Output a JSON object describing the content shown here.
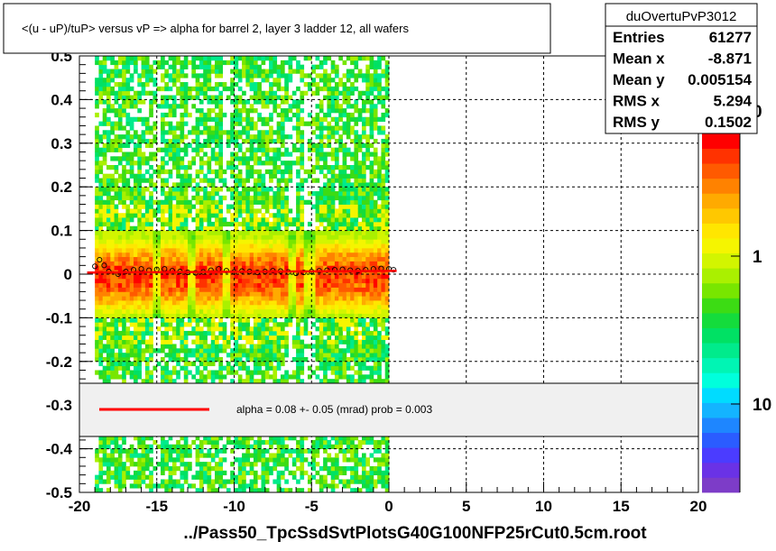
{
  "title": "<(u - uP)/tuP>  versus   vP =>  alpha for barrel 2, layer 3 ladder 12, all wafers",
  "footer": "../Pass50_TpcSsdSvtPlotsG40G100NFP25rCut0.5cm.root",
  "stats": {
    "name": "duOvertuPvP3012",
    "rows": [
      {
        "label": "Entries",
        "value": "61277"
      },
      {
        "label": "Mean x",
        "value": "-8.871"
      },
      {
        "label": "Mean y",
        "value": "0.005154"
      },
      {
        "label": "RMS x",
        "value": "5.294"
      },
      {
        "label": "RMS y",
        "value": "0.1502"
      }
    ]
  },
  "fit_legend": {
    "text": "alpha =    0.08 +-  0.05 (mrad) prob = 0.003",
    "line_color": "#ff0000"
  },
  "palette": {
    "labels": [
      "10",
      "1",
      "0"
    ],
    "colors": [
      "#7d3cc8",
      "#6a32e6",
      "#4b3cff",
      "#2b5cff",
      "#1e86ff",
      "#14b4ff",
      "#00dcff",
      "#00ffdc",
      "#00f5b4",
      "#00eb8c",
      "#00e164",
      "#14dc3c",
      "#3cdc14",
      "#78e600",
      "#aaf000",
      "#d2f500",
      "#f5f500",
      "#ffe600",
      "#ffc800",
      "#ffaa00",
      "#ff8200",
      "#ff5a00",
      "#ff3200",
      "#ff0000"
    ]
  },
  "chart_data": {
    "type": "heatmap",
    "xlim": [
      -20,
      20
    ],
    "ylim": [
      -0.5,
      0.5
    ],
    "x_ticks": [
      "-20",
      "-15",
      "-10",
      "-5",
      "0",
      "5",
      "10",
      "15",
      "20"
    ],
    "y_ticks": [
      "-0.5",
      "-0.4",
      "-0.3",
      "-0.2",
      "-0.1",
      "0",
      "0.1",
      "0.2",
      "0.3",
      "0.4",
      "0.5"
    ],
    "grid": true,
    "data_x_range": [
      -19.0,
      0.0
    ],
    "dead_columns_x": [
      -15.2,
      -12.8,
      -10.6,
      -6.4,
      -5.2
    ],
    "core_rows": [
      {
        "y": -0.06,
        "level": 0.66
      },
      {
        "y": -0.05,
        "level": 0.76
      },
      {
        "y": -0.04,
        "level": 0.84
      },
      {
        "y": -0.03,
        "level": 0.9
      },
      {
        "y": -0.02,
        "level": 0.95
      },
      {
        "y": -0.01,
        "level": 0.98
      },
      {
        "y": 0.0,
        "level": 1.0
      },
      {
        "y": 0.01,
        "level": 0.98
      },
      {
        "y": 0.02,
        "level": 0.95
      },
      {
        "y": 0.03,
        "level": 0.9
      },
      {
        "y": 0.04,
        "level": 0.84
      },
      {
        "y": 0.05,
        "level": 0.76
      },
      {
        "y": 0.06,
        "level": 0.66
      },
      {
        "y": 0.07,
        "level": 0.56
      },
      {
        "y": -0.07,
        "level": 0.56
      },
      {
        "y": 0.08,
        "level": 0.46
      },
      {
        "y": -0.08,
        "level": 0.46
      },
      {
        "y": 0.09,
        "level": 0.4
      },
      {
        "y": -0.09,
        "level": 0.4
      }
    ],
    "profile_points": [
      {
        "x": -19.0,
        "y": 0.018
      },
      {
        "x": -18.7,
        "y": 0.033
      },
      {
        "x": -18.4,
        "y": 0.02
      },
      {
        "x": -18.1,
        "y": 0.006
      },
      {
        "x": -17.5,
        "y": 0.0
      },
      {
        "x": -17.0,
        "y": 0.006
      },
      {
        "x": -16.5,
        "y": 0.01
      },
      {
        "x": -16.0,
        "y": 0.012
      },
      {
        "x": -15.5,
        "y": 0.009
      },
      {
        "x": -15.0,
        "y": 0.011
      },
      {
        "x": -14.5,
        "y": 0.012
      },
      {
        "x": -14.0,
        "y": 0.008
      },
      {
        "x": -13.5,
        "y": 0.006
      },
      {
        "x": -13.0,
        "y": 0.004
      },
      {
        "x": -12.5,
        "y": 0.003
      },
      {
        "x": -12.0,
        "y": 0.005
      },
      {
        "x": -11.5,
        "y": 0.009
      },
      {
        "x": -11.0,
        "y": 0.012
      },
      {
        "x": -10.5,
        "y": 0.008
      },
      {
        "x": -10.0,
        "y": 0.005
      },
      {
        "x": -9.5,
        "y": 0.007
      },
      {
        "x": -9.0,
        "y": 0.006
      },
      {
        "x": -8.5,
        "y": 0.004
      },
      {
        "x": -8.0,
        "y": 0.006
      },
      {
        "x": -7.5,
        "y": 0.008
      },
      {
        "x": -7.0,
        "y": 0.007
      },
      {
        "x": -6.5,
        "y": 0.005
      },
      {
        "x": -6.0,
        "y": 0.002
      },
      {
        "x": -5.5,
        "y": 0.004
      },
      {
        "x": -5.0,
        "y": 0.006
      },
      {
        "x": -4.5,
        "y": 0.008
      },
      {
        "x": -4.0,
        "y": 0.009
      },
      {
        "x": -3.5,
        "y": 0.01
      },
      {
        "x": -3.0,
        "y": 0.011
      },
      {
        "x": -2.5,
        "y": 0.009
      },
      {
        "x": -2.0,
        "y": 0.008
      },
      {
        "x": -1.5,
        "y": 0.01
      },
      {
        "x": -1.0,
        "y": 0.012
      },
      {
        "x": -0.5,
        "y": 0.013
      },
      {
        "x": 0.0,
        "y": 0.012
      },
      {
        "x": 0.3,
        "y": 0.01
      }
    ],
    "fit_line": {
      "x": [
        -19.5,
        0.5
      ],
      "y": [
        0.0035,
        0.0075
      ]
    }
  }
}
